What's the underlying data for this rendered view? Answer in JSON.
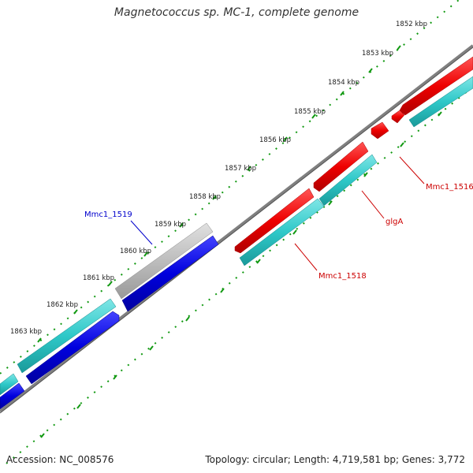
{
  "title": "Magnetococcus sp. MC-1, complete genome",
  "footer": {
    "accession": "Accession: NC_008576",
    "summary": "Topology: circular; Length: 4,719,581 bp; Genes: 3,772"
  },
  "ticks": [
    "1852 kbp",
    "1853 kbp",
    "1854 kbp",
    "1855 kbp",
    "1856 kbp",
    "1857 kbp",
    "1858 kbp",
    "1859 kbp",
    "1860 kbp",
    "1861 kbp",
    "1862 kbp",
    "1863 kbp"
  ],
  "gene_labels": {
    "mmc1_1519": "Mmc1_1519",
    "mmc1_1516": "Mmc1_1516",
    "glgA": "glgA",
    "mmc1_1518": "Mmc1_1518"
  },
  "colors": {
    "backbone": "#808080",
    "ruler": "#119911",
    "forward_cds": "#ee0000",
    "forward_cds_label": "#cc0000",
    "reverse_cds": "#0000dd",
    "reverse_cds_label": "#0000cc",
    "blast_hit": "#2ec8c8",
    "hypothetical": "#bdbdbd"
  }
}
